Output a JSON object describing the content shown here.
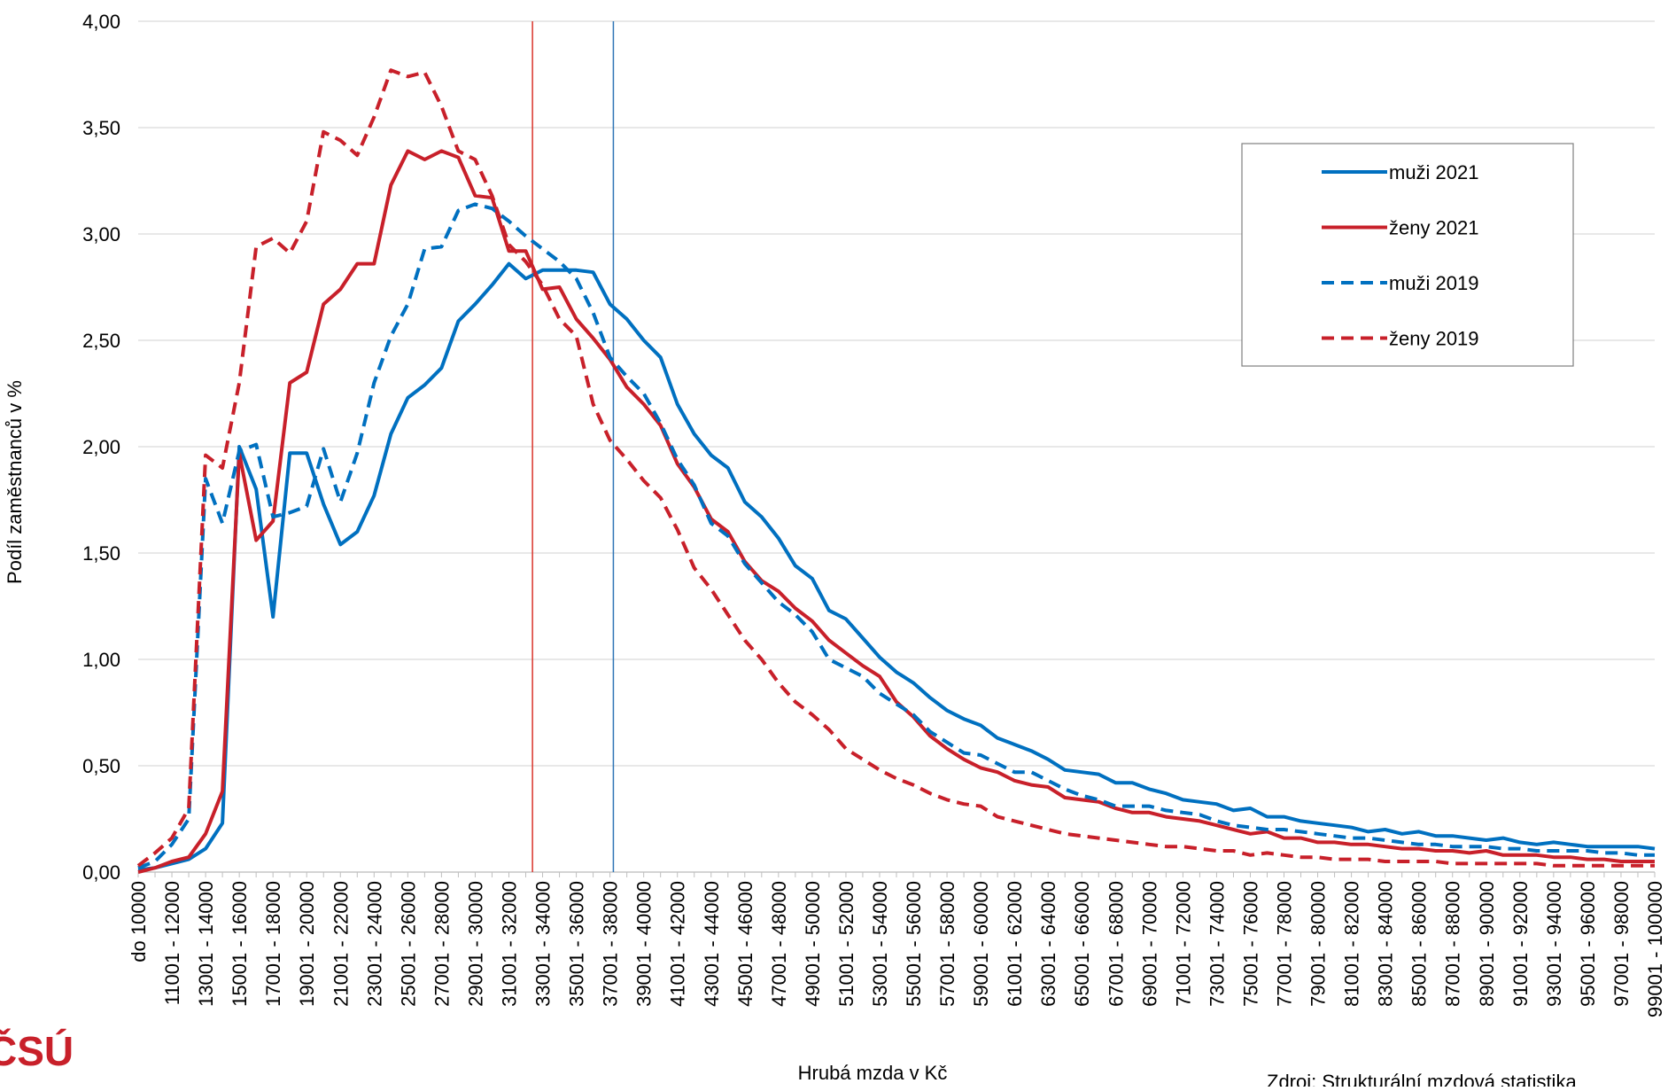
{
  "chart_data": {
    "type": "line",
    "ylabel": "Podíl zaměstnanců v %",
    "xlabel": "Hrubá mzda v Kč",
    "source": "Zdroj: Strukturální mzdová statistika",
    "logo": "ČSÚ",
    "categories": [
      "do 10000",
      null,
      "11001 - 12000",
      null,
      "13001 - 14000",
      null,
      "15001 - 16000",
      null,
      "17001 - 18000",
      null,
      "19001 - 20000",
      null,
      "21001 - 22000",
      null,
      "23001 - 24000",
      null,
      "25001 - 26000",
      null,
      "27001 - 28000",
      null,
      "29001 - 30000",
      null,
      "31001 - 32000",
      null,
      "33001 - 34000",
      null,
      "35001 - 36000",
      null,
      "37001 - 38000",
      null,
      "39001 - 40000",
      null,
      "41001 - 42000",
      null,
      "43001 - 44000",
      null,
      "45001 - 46000",
      null,
      "47001 - 48000",
      null,
      "49001 - 50000",
      null,
      "51001 - 52000",
      null,
      "53001 - 54000",
      null,
      "55001 - 56000",
      null,
      "57001 - 58000",
      null,
      "59001 - 60000",
      null,
      "61001 - 62000",
      null,
      "63001 - 64000",
      null,
      "65001 - 66000",
      null,
      "67001 - 68000",
      null,
      "69001 - 70000",
      null,
      "71001 - 72000",
      null,
      "73001 - 74000",
      null,
      "75001 - 76000",
      null,
      "77001 - 78000",
      null,
      "79001 - 80000",
      null,
      "81001 - 82000",
      null,
      "83001 - 84000",
      null,
      "85001 - 86000",
      null,
      "87001 - 88000",
      null,
      "89001 - 90000",
      null,
      "91001 - 92000",
      null,
      "93001 - 94000",
      null,
      "95001 - 96000",
      null,
      "97001 - 98000",
      null,
      "99001 - 100000"
    ],
    "series": [
      {
        "name": "muži 2021",
        "color": "#0070c0",
        "dash": false,
        "values": [
          0.01,
          0.02,
          0.04,
          0.06,
          0.11,
          0.23,
          2.0,
          1.8,
          1.2,
          1.97,
          1.97,
          1.73,
          1.54,
          1.6,
          1.77,
          2.06,
          2.23,
          2.29,
          2.37,
          2.59,
          2.67,
          2.76,
          2.86,
          2.79,
          2.83,
          2.83,
          2.83,
          2.82,
          2.67,
          2.6,
          2.5,
          2.42,
          2.2,
          2.06,
          1.96,
          1.9,
          1.74,
          1.67,
          1.57,
          1.44,
          1.38,
          1.23,
          1.19,
          1.1,
          1.01,
          0.94,
          0.89,
          0.82,
          0.76,
          0.72,
          0.69,
          0.63,
          0.6,
          0.57,
          0.53,
          0.48,
          0.47,
          0.46,
          0.42,
          0.42,
          0.39,
          0.37,
          0.34,
          0.33,
          0.32,
          0.29,
          0.3,
          0.26,
          0.26,
          0.24,
          0.23,
          0.22,
          0.21,
          0.19,
          0.2,
          0.18,
          0.19,
          0.17,
          0.17,
          0.16,
          0.15,
          0.16,
          0.14,
          0.13,
          0.14,
          0.13,
          0.12,
          0.12,
          0.12,
          0.12,
          0.11
        ]
      },
      {
        "name": "ženy 2021",
        "color": "#c8202a",
        "dash": false,
        "values": [
          0.0,
          0.02,
          0.05,
          0.07,
          0.18,
          0.38,
          1.97,
          1.56,
          1.65,
          2.3,
          2.35,
          2.67,
          2.74,
          2.86,
          2.86,
          3.23,
          3.39,
          3.35,
          3.39,
          3.36,
          3.18,
          3.17,
          2.92,
          2.92,
          2.74,
          2.75,
          2.6,
          2.51,
          2.41,
          2.28,
          2.2,
          2.1,
          1.92,
          1.81,
          1.66,
          1.6,
          1.46,
          1.37,
          1.32,
          1.24,
          1.18,
          1.09,
          1.03,
          0.97,
          0.92,
          0.8,
          0.73,
          0.64,
          0.58,
          0.53,
          0.49,
          0.47,
          0.43,
          0.41,
          0.4,
          0.35,
          0.34,
          0.33,
          0.3,
          0.28,
          0.28,
          0.26,
          0.25,
          0.24,
          0.22,
          0.2,
          0.18,
          0.19,
          0.16,
          0.16,
          0.14,
          0.14,
          0.13,
          0.13,
          0.12,
          0.11,
          0.11,
          0.1,
          0.1,
          0.09,
          0.1,
          0.08,
          0.08,
          0.08,
          0.07,
          0.07,
          0.06,
          0.06,
          0.05,
          0.05,
          0.05
        ]
      },
      {
        "name": "muži 2019",
        "color": "#0070c0",
        "dash": true,
        "values": [
          0.02,
          0.05,
          0.13,
          0.25,
          1.85,
          1.64,
          1.98,
          2.01,
          1.67,
          1.69,
          1.72,
          1.99,
          1.74,
          1.97,
          2.3,
          2.52,
          2.67,
          2.93,
          2.94,
          3.11,
          3.14,
          3.12,
          3.06,
          2.99,
          2.93,
          2.87,
          2.79,
          2.63,
          2.42,
          2.33,
          2.25,
          2.11,
          1.94,
          1.82,
          1.64,
          1.58,
          1.45,
          1.36,
          1.27,
          1.21,
          1.13,
          1.0,
          0.96,
          0.92,
          0.84,
          0.79,
          0.74,
          0.66,
          0.61,
          0.56,
          0.55,
          0.51,
          0.47,
          0.47,
          0.43,
          0.39,
          0.36,
          0.34,
          0.31,
          0.31,
          0.31,
          0.29,
          0.28,
          0.27,
          0.24,
          0.22,
          0.21,
          0.2,
          0.2,
          0.19,
          0.18,
          0.17,
          0.16,
          0.16,
          0.15,
          0.14,
          0.13,
          0.13,
          0.12,
          0.12,
          0.12,
          0.11,
          0.11,
          0.1,
          0.1,
          0.1,
          0.1,
          0.09,
          0.09,
          0.08,
          0.08
        ]
      },
      {
        "name": "ženy 2019",
        "color": "#c8202a",
        "dash": true,
        "values": [
          0.03,
          0.09,
          0.16,
          0.3,
          1.96,
          1.9,
          2.3,
          2.94,
          2.98,
          2.91,
          3.06,
          3.48,
          3.44,
          3.37,
          3.55,
          3.77,
          3.74,
          3.76,
          3.6,
          3.39,
          3.35,
          3.18,
          2.95,
          2.87,
          2.76,
          2.6,
          2.52,
          2.2,
          2.03,
          1.94,
          1.84,
          1.76,
          1.61,
          1.43,
          1.33,
          1.21,
          1.09,
          1.0,
          0.89,
          0.8,
          0.74,
          0.67,
          0.58,
          0.53,
          0.48,
          0.44,
          0.41,
          0.37,
          0.34,
          0.32,
          0.31,
          0.26,
          0.24,
          0.22,
          0.2,
          0.18,
          0.17,
          0.16,
          0.15,
          0.14,
          0.13,
          0.12,
          0.12,
          0.11,
          0.1,
          0.1,
          0.08,
          0.09,
          0.08,
          0.07,
          0.07,
          0.06,
          0.06,
          0.06,
          0.05,
          0.05,
          0.05,
          0.05,
          0.04,
          0.04,
          0.04,
          0.04,
          0.04,
          0.04,
          0.03,
          0.03,
          0.03,
          0.03,
          0.03,
          0.03,
          0.03
        ]
      }
    ],
    "reference_lines": [
      {
        "color": "#d9342b",
        "x": 23.4
      },
      {
        "color": "#2e75b6",
        "x": 28.2
      }
    ],
    "ylim": [
      0,
      4
    ],
    "yticks": [
      {
        "value": 0,
        "label": "0,00"
      },
      {
        "value": 0.5,
        "label": "0,50"
      },
      {
        "value": 1,
        "label": "1,00"
      },
      {
        "value": 1.5,
        "label": "1,50"
      },
      {
        "value": 2,
        "label": "2,00"
      },
      {
        "value": 2.5,
        "label": "2,50"
      },
      {
        "value": 3,
        "label": "3,00"
      },
      {
        "value": 3.5,
        "label": "3,50"
      },
      {
        "value": 4,
        "label": "4,00"
      }
    ],
    "grid": true,
    "legend": "upper right"
  }
}
